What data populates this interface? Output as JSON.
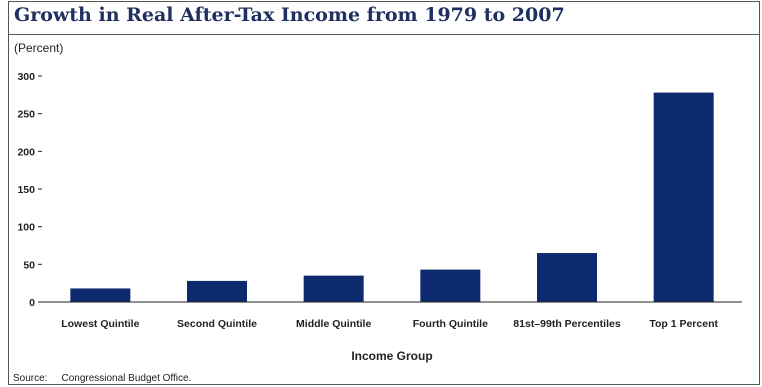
{
  "chart_data": {
    "type": "bar",
    "title": "Growth in Real After-Tax Income from 1979 to 2007",
    "ylabel": "(Percent)",
    "xlabel": "Income Group",
    "categories": [
      "Lowest Quintile",
      "Second Quintile",
      "Middle Quintile",
      "Fourth Quintile",
      "81st–99th Percentiles",
      "Top 1 Percent"
    ],
    "values": [
      18,
      28,
      35,
      43,
      65,
      278
    ],
    "ylim": [
      0,
      300
    ],
    "yticks": [
      0,
      50,
      100,
      150,
      200,
      250,
      300
    ],
    "bar_color": "#0e2a6e",
    "grid": false
  },
  "source": {
    "label": "Source:",
    "text": "Congressional Budget Office."
  }
}
